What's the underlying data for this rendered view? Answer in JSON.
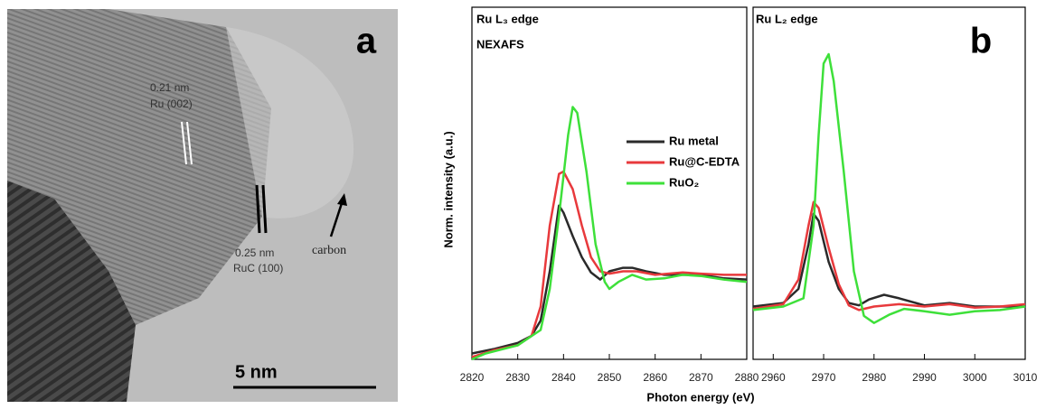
{
  "panel_a": {
    "label": "a",
    "annotations": [
      "0.21 nm",
      "Ru (002)",
      "0.25 nm",
      "RuC (100)",
      "carbon"
    ],
    "scale_bar": "5 nm"
  },
  "panel_b_label": "b",
  "chart_data": [
    {
      "type": "line",
      "title": "Ru L₃ edge",
      "subtitle": "NEXAFS",
      "xlabel": "Photon energy (eV)",
      "ylabel": "Norm. intensity (a.u.)",
      "xlim": [
        2820,
        2880
      ],
      "xticks": [
        2820,
        2830,
        2840,
        2850,
        2860,
        2870,
        2880
      ],
      "ylim": [
        0,
        3
      ],
      "series": [
        {
          "name": "Ru metal",
          "color": "#2a2a2a",
          "x": [
            2820,
            2825,
            2830,
            2833,
            2835,
            2837,
            2839,
            2840,
            2842,
            2844,
            2846,
            2848,
            2850,
            2853,
            2855,
            2858,
            2862,
            2866,
            2870,
            2875,
            2880
          ],
          "values": [
            0.05,
            0.09,
            0.14,
            0.2,
            0.33,
            0.75,
            1.31,
            1.25,
            1.05,
            0.87,
            0.74,
            0.68,
            0.75,
            0.78,
            0.78,
            0.75,
            0.72,
            0.72,
            0.72,
            0.69,
            0.68
          ]
        },
        {
          "name": "Ru@C-EDTA",
          "color": "#e8393c",
          "x": [
            2820,
            2825,
            2830,
            2833,
            2835,
            2837,
            2839,
            2840,
            2842,
            2844,
            2846,
            2848,
            2850,
            2853,
            2856,
            2860,
            2866,
            2870,
            2875,
            2880
          ],
          "values": [
            0.02,
            0.08,
            0.12,
            0.2,
            0.45,
            1.14,
            1.58,
            1.6,
            1.45,
            1.14,
            0.87,
            0.75,
            0.73,
            0.75,
            0.75,
            0.72,
            0.74,
            0.73,
            0.72,
            0.72
          ]
        },
        {
          "name": "RuO₂",
          "color": "#3ee03a",
          "x": [
            2820,
            2823,
            2830,
            2835,
            2837,
            2839,
            2841,
            2842,
            2843,
            2845,
            2847,
            2849,
            2850,
            2852,
            2855,
            2858,
            2862,
            2866,
            2870,
            2875,
            2880
          ],
          "values": [
            0,
            0.05,
            0.12,
            0.25,
            0.6,
            1.22,
            1.91,
            2.15,
            2.1,
            1.6,
            0.98,
            0.66,
            0.6,
            0.66,
            0.72,
            0.68,
            0.69,
            0.72,
            0.71,
            0.68,
            0.66
          ]
        }
      ]
    },
    {
      "type": "line",
      "title": "Ru L₂ edge",
      "xlim": [
        2956,
        3010
      ],
      "xticks": [
        2960,
        2970,
        2980,
        2990,
        3000,
        3010
      ],
      "ylim": [
        0,
        3
      ],
      "series": [
        {
          "color": "#2a2a2a",
          "x": [
            2956,
            2962,
            2965,
            2967,
            2968,
            2969,
            2971,
            2973,
            2975,
            2977,
            2979,
            2982,
            2985,
            2990,
            2995,
            3000,
            3005,
            3010
          ],
          "values": [
            0.45,
            0.48,
            0.6,
            0.98,
            1.24,
            1.18,
            0.83,
            0.6,
            0.48,
            0.46,
            0.51,
            0.55,
            0.52,
            0.46,
            0.48,
            0.45,
            0.45,
            0.45
          ]
        },
        {
          "color": "#e8393c",
          "x": [
            2956,
            2962,
            2965,
            2967,
            2968,
            2969,
            2971,
            2973,
            2975,
            2977,
            2980,
            2985,
            2990,
            2995,
            3000,
            3005,
            3010
          ],
          "values": [
            0.43,
            0.47,
            0.68,
            1.14,
            1.34,
            1.29,
            0.95,
            0.64,
            0.46,
            0.42,
            0.45,
            0.47,
            0.45,
            0.47,
            0.44,
            0.45,
            0.47
          ]
        },
        {
          "color": "#3ee03a",
          "x": [
            2956,
            2962,
            2966,
            2968,
            2969,
            2970,
            2971,
            2972,
            2974,
            2976,
            2978,
            2980,
            2983,
            2986,
            2990,
            2995,
            3000,
            3005,
            3010
          ],
          "values": [
            0.42,
            0.45,
            0.52,
            1.14,
            1.91,
            2.52,
            2.6,
            2.37,
            1.6,
            0.75,
            0.37,
            0.31,
            0.38,
            0.43,
            0.41,
            0.38,
            0.41,
            0.42,
            0.45
          ]
        }
      ]
    }
  ]
}
